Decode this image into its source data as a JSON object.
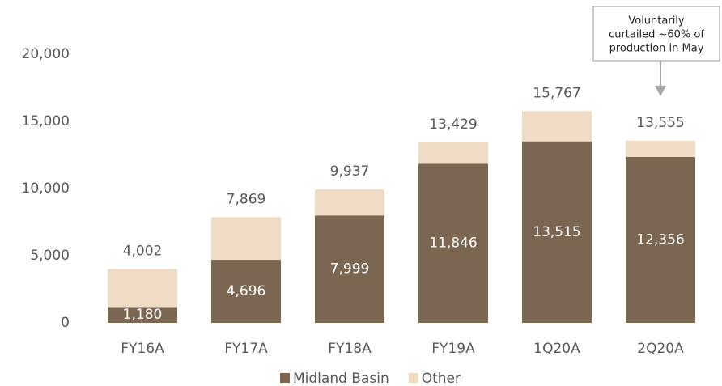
{
  "chart_data": {
    "type": "stacked_bar",
    "categories": [
      "FY16A",
      "FY17A",
      "FY18A",
      "FY19A",
      "1Q20A",
      "2Q20A"
    ],
    "series": [
      {
        "name": "Midland Basin",
        "color": "#7a6651",
        "values": [
          1180,
          4696,
          7999,
          11846,
          13515,
          12356
        ],
        "value_labels": [
          "1,180",
          "4,696",
          "7,999",
          "11,846",
          "13,515",
          "12,356"
        ]
      },
      {
        "name": "Other",
        "color": "#f0dcc4",
        "values": [
          2822,
          3173,
          1938,
          1583,
          2252,
          1199
        ]
      }
    ],
    "totals": [
      4002,
      7869,
      9937,
      13429,
      15767,
      13555
    ],
    "total_labels": [
      "4,002",
      "7,869",
      "9,937",
      "13,429",
      "15,767",
      "13,555"
    ],
    "ylim": [
      0,
      20000
    ],
    "yticks": [
      0,
      {
        "value": 5000,
        "label": "5,000"
      },
      {
        "value": 10000,
        "label": "10,000"
      },
      {
        "value": 15000,
        "label": "15,000"
      },
      {
        "value": 20000,
        "label": "20,000"
      }
    ],
    "annotation": {
      "lines": [
        "Voluntarily",
        "curtailed ~60% of",
        "production in May"
      ],
      "category": "2Q20A"
    },
    "legend": "bottom"
  }
}
